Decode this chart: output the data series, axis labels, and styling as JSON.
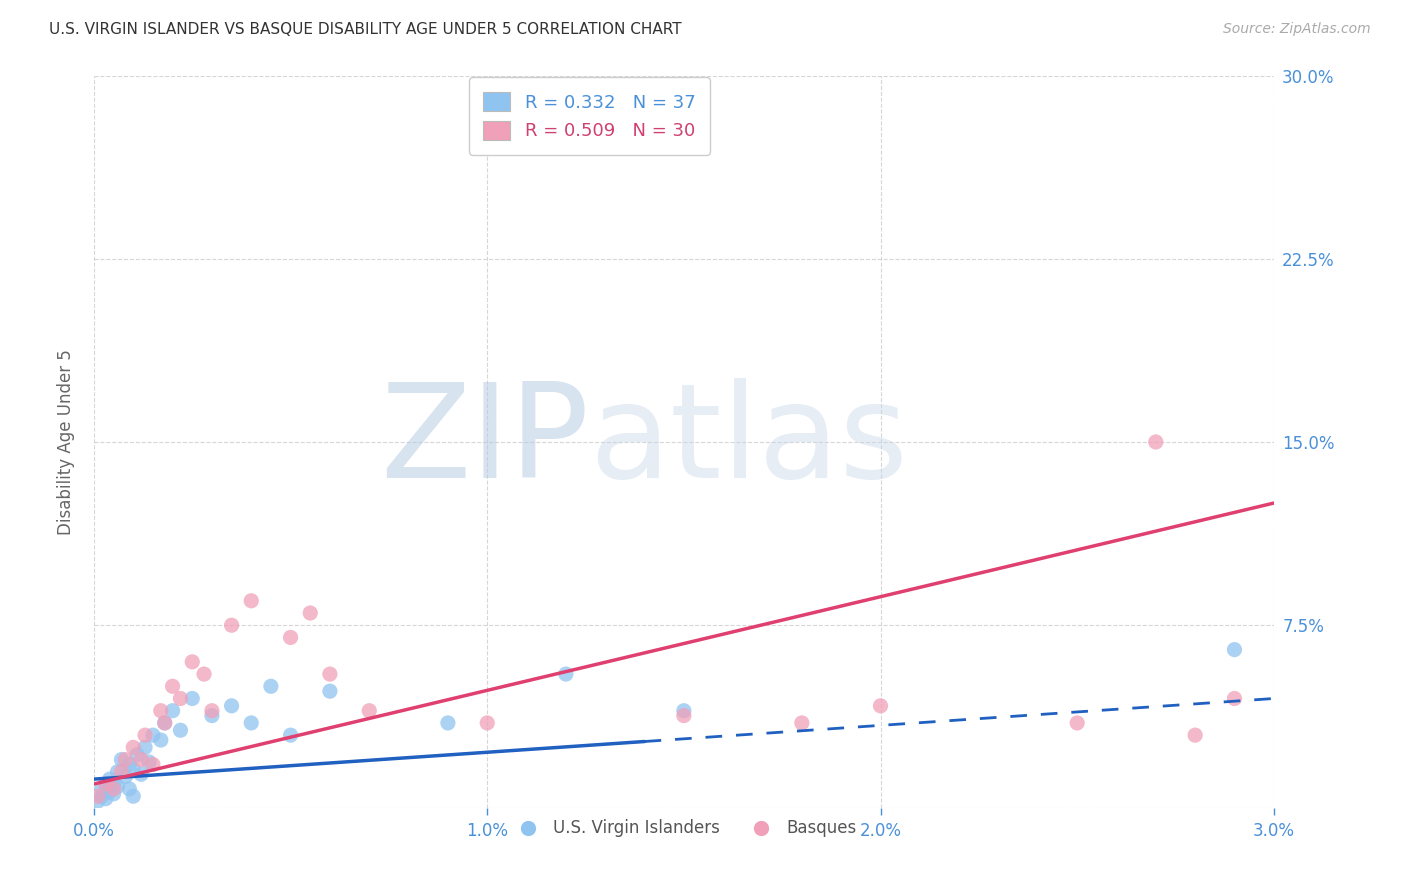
{
  "title": "U.S. VIRGIN ISLANDER VS BASQUE DISABILITY AGE UNDER 5 CORRELATION CHART",
  "source": "Source: ZipAtlas.com",
  "ylabel": "Disability Age Under 5",
  "xlim": [
    0.0,
    3.0
  ],
  "ylim": [
    0.0,
    30.0
  ],
  "xticks": [
    0.0,
    1.0,
    2.0,
    3.0
  ],
  "yticks": [
    0.0,
    7.5,
    15.0,
    22.5,
    30.0
  ],
  "xtick_labels": [
    "0.0%",
    "1.0%",
    "2.0%",
    "3.0%"
  ],
  "ytick_labels": [
    "",
    "7.5%",
    "15.0%",
    "22.5%",
    "30.0%"
  ],
  "legend_blue_label": "R = 0.332   N = 37",
  "legend_pink_label": "R = 0.509   N = 30",
  "series_blue_label": "U.S. Virgin Islanders",
  "series_pink_label": "Basques",
  "blue_scatter_color": "#90C4F0",
  "pink_scatter_color": "#F0A0B8",
  "blue_line_color": "#2060C0",
  "pink_line_color": "#E04070",
  "legend_text_blue_color": "#4a90d9",
  "legend_text_pink_color": "#d04070",
  "tick_color": "#4a90d9",
  "title_color": "#333333",
  "source_color": "#aaaaaa",
  "watermark_color": "#ccdcee",
  "grid_color": "#cccccc",
  "blue_x": [
    0.01,
    0.02,
    0.02,
    0.03,
    0.03,
    0.04,
    0.04,
    0.05,
    0.05,
    0.06,
    0.06,
    0.07,
    0.08,
    0.09,
    0.09,
    0.1,
    0.1,
    0.11,
    0.12,
    0.13,
    0.14,
    0.15,
    0.17,
    0.18,
    0.2,
    0.22,
    0.25,
    0.3,
    0.35,
    0.4,
    0.45,
    0.5,
    0.6,
    0.9,
    1.2,
    1.5,
    2.9
  ],
  "blue_y": [
    0.3,
    0.5,
    0.8,
    1.0,
    0.4,
    0.7,
    1.2,
    0.6,
    1.0,
    0.9,
    1.5,
    2.0,
    1.3,
    0.8,
    1.8,
    1.6,
    0.5,
    2.2,
    1.4,
    2.5,
    1.9,
    3.0,
    2.8,
    3.5,
    4.0,
    3.2,
    4.5,
    3.8,
    4.2,
    3.5,
    5.0,
    3.0,
    4.8,
    3.5,
    5.5,
    4.0,
    6.5
  ],
  "pink_x": [
    0.01,
    0.03,
    0.05,
    0.07,
    0.08,
    0.1,
    0.12,
    0.13,
    0.15,
    0.17,
    0.18,
    0.2,
    0.22,
    0.25,
    0.28,
    0.3,
    0.35,
    0.4,
    0.5,
    0.55,
    0.6,
    0.7,
    1.0,
    1.5,
    1.8,
    2.0,
    2.5,
    2.7,
    2.8,
    2.9
  ],
  "pink_y": [
    0.5,
    1.0,
    0.8,
    1.5,
    2.0,
    2.5,
    2.0,
    3.0,
    1.8,
    4.0,
    3.5,
    5.0,
    4.5,
    6.0,
    5.5,
    4.0,
    7.5,
    8.5,
    7.0,
    8.0,
    5.5,
    4.0,
    3.5,
    3.8,
    3.5,
    4.2,
    3.5,
    15.0,
    3.0,
    4.5
  ],
  "blue_solid_end": 1.4,
  "blue_line_x0": 0.0,
  "blue_line_x1": 3.0,
  "blue_line_y0": 1.2,
  "blue_line_y1": 4.5,
  "pink_line_x0": 0.0,
  "pink_line_x1": 3.0,
  "pink_line_y0": 1.0,
  "pink_line_y1": 12.5
}
